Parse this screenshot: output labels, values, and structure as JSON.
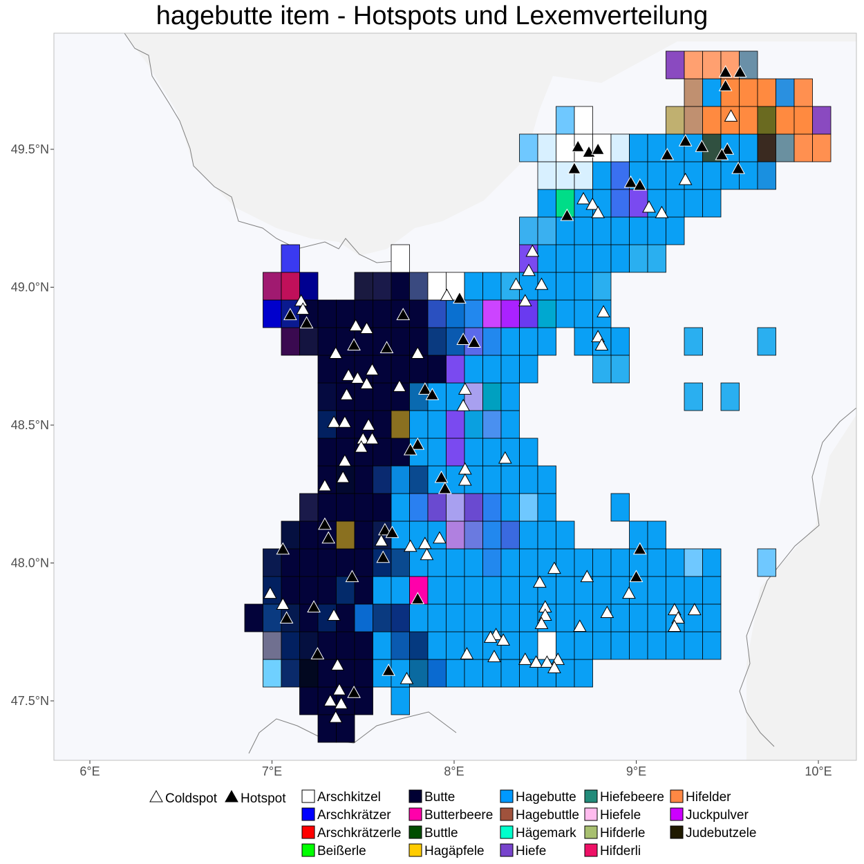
{
  "title": "hagebutte item - Hotspots und Lexemverteilung",
  "axes": {
    "x_ticks": [
      "6°E",
      "7°E",
      "8°E",
      "9°E",
      "10°E"
    ],
    "y_ticks": [
      "47.5°N",
      "48.0°N",
      "48.5°N",
      "49.0°N",
      "49.5°N"
    ]
  },
  "colors": {
    "panel_bg": "#f2f2f2",
    "region_bg": "#f7f8fc",
    "hagebutte": "#0099ff",
    "butte": "#000033"
  },
  "legend": {
    "hotspot_items": [
      {
        "label": "Coldspot",
        "symbol": "triangle-white"
      },
      {
        "label": "Hotspot",
        "symbol": "triangle-black"
      }
    ],
    "lexemes": [
      {
        "label": "Arschkitzel",
        "color": "#ffffff"
      },
      {
        "label": "Arschkrätzer",
        "color": "#0000ff"
      },
      {
        "label": "Arschkrätzerle",
        "color": "#ff0000"
      },
      {
        "label": "Beißerle",
        "color": "#00ff00"
      },
      {
        "label": "Butte",
        "color": "#000033"
      },
      {
        "label": "Butterbeere",
        "color": "#ff00aa"
      },
      {
        "label": "Buttle",
        "color": "#004d00"
      },
      {
        "label": "Hagäpfele",
        "color": "#ffcc00"
      },
      {
        "label": "Hagebutte",
        "color": "#0099ff"
      },
      {
        "label": "Hagebuttle",
        "color": "#a0523c"
      },
      {
        "label": "Hägemark",
        "color": "#00ffcc"
      },
      {
        "label": "Hiefe",
        "color": "#7744cc"
      },
      {
        "label": "Hiefebeere",
        "color": "#228b7a"
      },
      {
        "label": "Hiefele",
        "color": "#ffbbee"
      },
      {
        "label": "Hifderle",
        "color": "#a8c070"
      },
      {
        "label": "Hifderli",
        "color": "#ee1166"
      },
      {
        "label": "Hifelder",
        "color": "#ff8844"
      },
      {
        "label": "Juckpulver",
        "color": "#cc00ff"
      },
      {
        "label": "Judebutzele",
        "color": "#1f1a00"
      }
    ]
  },
  "hotspots": [
    {
      "type": "cold",
      "lon": 7.16,
      "lat": 48.95
    },
    {
      "type": "cold",
      "lon": 7.17,
      "lat": 48.92
    },
    {
      "type": "hot",
      "lon": 7.1,
      "lat": 48.9
    },
    {
      "type": "hot",
      "lon": 7.19,
      "lat": 48.87
    },
    {
      "type": "cold",
      "lon": 7.46,
      "lat": 48.86
    },
    {
      "type": "cold",
      "lon": 7.52,
      "lat": 48.85
    },
    {
      "type": "hot",
      "lon": 7.72,
      "lat": 48.9
    },
    {
      "type": "hot",
      "lon": 7.45,
      "lat": 48.79
    },
    {
      "type": "hot",
      "lon": 7.63,
      "lat": 48.78
    },
    {
      "type": "cold",
      "lon": 7.35,
      "lat": 48.76
    },
    {
      "type": "cold",
      "lon": 7.8,
      "lat": 48.76
    },
    {
      "type": "cold",
      "lon": 7.55,
      "lat": 48.7
    },
    {
      "type": "cold",
      "lon": 7.42,
      "lat": 48.68
    },
    {
      "type": "cold",
      "lon": 7.47,
      "lat": 48.67
    },
    {
      "type": "cold",
      "lon": 7.52,
      "lat": 48.65
    },
    {
      "type": "cold",
      "lon": 7.7,
      "lat": 48.64
    },
    {
      "type": "hot",
      "lon": 7.84,
      "lat": 48.63
    },
    {
      "type": "hot",
      "lon": 7.88,
      "lat": 48.61
    },
    {
      "type": "cold",
      "lon": 7.41,
      "lat": 48.61
    },
    {
      "type": "cold",
      "lon": 7.34,
      "lat": 48.51
    },
    {
      "type": "cold",
      "lon": 7.4,
      "lat": 48.51
    },
    {
      "type": "cold",
      "lon": 7.53,
      "lat": 48.5
    },
    {
      "type": "cold",
      "lon": 7.5,
      "lat": 48.45
    },
    {
      "type": "cold",
      "lon": 7.55,
      "lat": 48.45
    },
    {
      "type": "cold",
      "lon": 7.49,
      "lat": 48.42
    },
    {
      "type": "hot",
      "lon": 7.8,
      "lat": 48.43
    },
    {
      "type": "hot",
      "lon": 7.76,
      "lat": 48.41
    },
    {
      "type": "cold",
      "lon": 7.4,
      "lat": 48.37
    },
    {
      "type": "cold",
      "lon": 7.39,
      "lat": 48.31
    },
    {
      "type": "cold",
      "lon": 7.29,
      "lat": 48.28
    },
    {
      "type": "hot",
      "lon": 7.93,
      "lat": 48.31
    },
    {
      "type": "hot",
      "lon": 7.95,
      "lat": 48.27
    },
    {
      "type": "cold",
      "lon": 8.06,
      "lat": 48.34
    },
    {
      "type": "cold",
      "lon": 8.06,
      "lat": 48.3
    },
    {
      "type": "cold",
      "lon": 8.28,
      "lat": 48.38
    },
    {
      "type": "hot",
      "lon": 7.29,
      "lat": 48.14
    },
    {
      "type": "hot",
      "lon": 7.31,
      "lat": 48.09
    },
    {
      "type": "hot",
      "lon": 7.62,
      "lat": 48.12
    },
    {
      "type": "hot",
      "lon": 7.66,
      "lat": 48.11
    },
    {
      "type": "cold",
      "lon": 7.6,
      "lat": 48.08
    },
    {
      "type": "cold",
      "lon": 7.76,
      "lat": 48.06
    },
    {
      "type": "cold",
      "lon": 7.84,
      "lat": 48.07
    },
    {
      "type": "cold",
      "lon": 7.92,
      "lat": 48.09
    },
    {
      "type": "hot",
      "lon": 7.06,
      "lat": 48.05
    },
    {
      "type": "hot",
      "lon": 7.61,
      "lat": 48.02
    },
    {
      "type": "cold",
      "lon": 7.85,
      "lat": 48.03
    },
    {
      "type": "hot",
      "lon": 7.44,
      "lat": 47.95
    },
    {
      "type": "cold",
      "lon": 6.99,
      "lat": 47.89
    },
    {
      "type": "cold",
      "lon": 7.06,
      "lat": 47.85
    },
    {
      "type": "hot",
      "lon": 7.23,
      "lat": 47.84
    },
    {
      "type": "hot",
      "lon": 7.8,
      "lat": 47.87
    },
    {
      "type": "hot",
      "lon": 7.08,
      "lat": 47.8
    },
    {
      "type": "cold",
      "lon": 7.34,
      "lat": 47.81
    },
    {
      "type": "hot",
      "lon": 7.25,
      "lat": 47.67
    },
    {
      "type": "cold",
      "lon": 7.36,
      "lat": 47.63
    },
    {
      "type": "hot",
      "lon": 7.64,
      "lat": 47.61
    },
    {
      "type": "cold",
      "lon": 7.74,
      "lat": 47.58
    },
    {
      "type": "hot",
      "lon": 7.45,
      "lat": 47.53
    },
    {
      "type": "cold",
      "lon": 7.37,
      "lat": 47.54
    },
    {
      "type": "cold",
      "lon": 7.32,
      "lat": 47.5
    },
    {
      "type": "cold",
      "lon": 7.38,
      "lat": 47.49
    },
    {
      "type": "cold",
      "lon": 7.35,
      "lat": 47.44
    },
    {
      "type": "cold",
      "lon": 7.96,
      "lat": 48.97
    },
    {
      "type": "hot",
      "lon": 8.03,
      "lat": 48.96
    },
    {
      "type": "hot",
      "lon": 8.05,
      "lat": 48.81
    },
    {
      "type": "hot",
      "lon": 8.11,
      "lat": 48.8
    },
    {
      "type": "cold",
      "lon": 8.34,
      "lat": 49.01
    },
    {
      "type": "cold",
      "lon": 8.48,
      "lat": 49.01
    },
    {
      "type": "cold",
      "lon": 8.39,
      "lat": 48.95
    },
    {
      "type": "cold",
      "lon": 8.41,
      "lat": 49.06
    },
    {
      "type": "cold",
      "lon": 8.43,
      "lat": 49.13
    },
    {
      "type": "cold",
      "lon": 8.82,
      "lat": 48.91
    },
    {
      "type": "cold",
      "lon": 8.79,
      "lat": 48.82
    },
    {
      "type": "cold",
      "lon": 8.81,
      "lat": 48.79
    },
    {
      "type": "cold",
      "lon": 8.06,
      "lat": 48.63
    },
    {
      "type": "cold",
      "lon": 8.05,
      "lat": 48.57
    },
    {
      "type": "cold",
      "lon": 8.71,
      "lat": 49.32
    },
    {
      "type": "cold",
      "lon": 8.76,
      "lat": 49.3
    },
    {
      "type": "cold",
      "lon": 8.79,
      "lat": 49.27
    },
    {
      "type": "hot",
      "lon": 8.62,
      "lat": 49.26
    },
    {
      "type": "cold",
      "lon": 9.07,
      "lat": 49.29
    },
    {
      "type": "cold",
      "lon": 9.14,
      "lat": 49.27
    },
    {
      "type": "hot",
      "lon": 8.97,
      "lat": 49.38
    },
    {
      "type": "hot",
      "lon": 9.02,
      "lat": 49.37
    },
    {
      "type": "cold",
      "lon": 9.27,
      "lat": 49.39
    },
    {
      "type": "hot",
      "lon": 8.68,
      "lat": 49.51
    },
    {
      "type": "hot",
      "lon": 8.74,
      "lat": 49.49
    },
    {
      "type": "hot",
      "lon": 8.79,
      "lat": 49.5
    },
    {
      "type": "hot",
      "lon": 8.66,
      "lat": 49.43
    },
    {
      "type": "hot",
      "lon": 9.17,
      "lat": 49.48
    },
    {
      "type": "hot",
      "lon": 9.27,
      "lat": 49.53
    },
    {
      "type": "hot",
      "lon": 9.36,
      "lat": 49.51
    },
    {
      "type": "hot",
      "lon": 9.5,
      "lat": 49.5
    },
    {
      "type": "hot",
      "lon": 9.47,
      "lat": 49.48
    },
    {
      "type": "hot",
      "lon": 9.56,
      "lat": 49.43
    },
    {
      "type": "cold",
      "lon": 9.52,
      "lat": 49.62
    },
    {
      "type": "hot",
      "lon": 9.49,
      "lat": 49.78
    },
    {
      "type": "hot",
      "lon": 9.49,
      "lat": 49.73
    },
    {
      "type": "hot",
      "lon": 9.57,
      "lat": 49.78
    },
    {
      "type": "cold",
      "lon": 8.47,
      "lat": 47.93
    },
    {
      "type": "cold",
      "lon": 8.55,
      "lat": 47.98
    },
    {
      "type": "cold",
      "lon": 8.73,
      "lat": 47.95
    },
    {
      "type": "hot",
      "lon": 9.0,
      "lat": 47.95
    },
    {
      "type": "hot",
      "lon": 9.02,
      "lat": 48.05
    },
    {
      "type": "cold",
      "lon": 8.96,
      "lat": 47.89
    },
    {
      "type": "cold",
      "lon": 8.84,
      "lat": 47.82
    },
    {
      "type": "cold",
      "lon": 8.69,
      "lat": 47.77
    },
    {
      "type": "cold",
      "lon": 8.5,
      "lat": 47.84
    },
    {
      "type": "cold",
      "lon": 8.5,
      "lat": 47.81
    },
    {
      "type": "cold",
      "lon": 8.48,
      "lat": 47.78
    },
    {
      "type": "cold",
      "lon": 8.23,
      "lat": 47.74
    },
    {
      "type": "cold",
      "lon": 8.27,
      "lat": 47.72
    },
    {
      "type": "cold",
      "lon": 8.2,
      "lat": 47.73
    },
    {
      "type": "cold",
      "lon": 8.22,
      "lat": 47.66
    },
    {
      "type": "cold",
      "lon": 8.07,
      "lat": 47.67
    },
    {
      "type": "cold",
      "lon": 8.39,
      "lat": 47.65
    },
    {
      "type": "cold",
      "lon": 8.45,
      "lat": 47.64
    },
    {
      "type": "cold",
      "lon": 8.51,
      "lat": 47.64
    },
    {
      "type": "cold",
      "lon": 8.57,
      "lat": 47.65
    },
    {
      "type": "cold",
      "lon": 8.55,
      "lat": 47.62
    },
    {
      "type": "cold",
      "lon": 9.21,
      "lat": 47.83
    },
    {
      "type": "cold",
      "lon": 9.23,
      "lat": 47.8
    },
    {
      "type": "cold",
      "lon": 9.21,
      "lat": 47.77
    },
    {
      "type": "cold",
      "lon": 9.32,
      "lat": 47.83
    }
  ]
}
